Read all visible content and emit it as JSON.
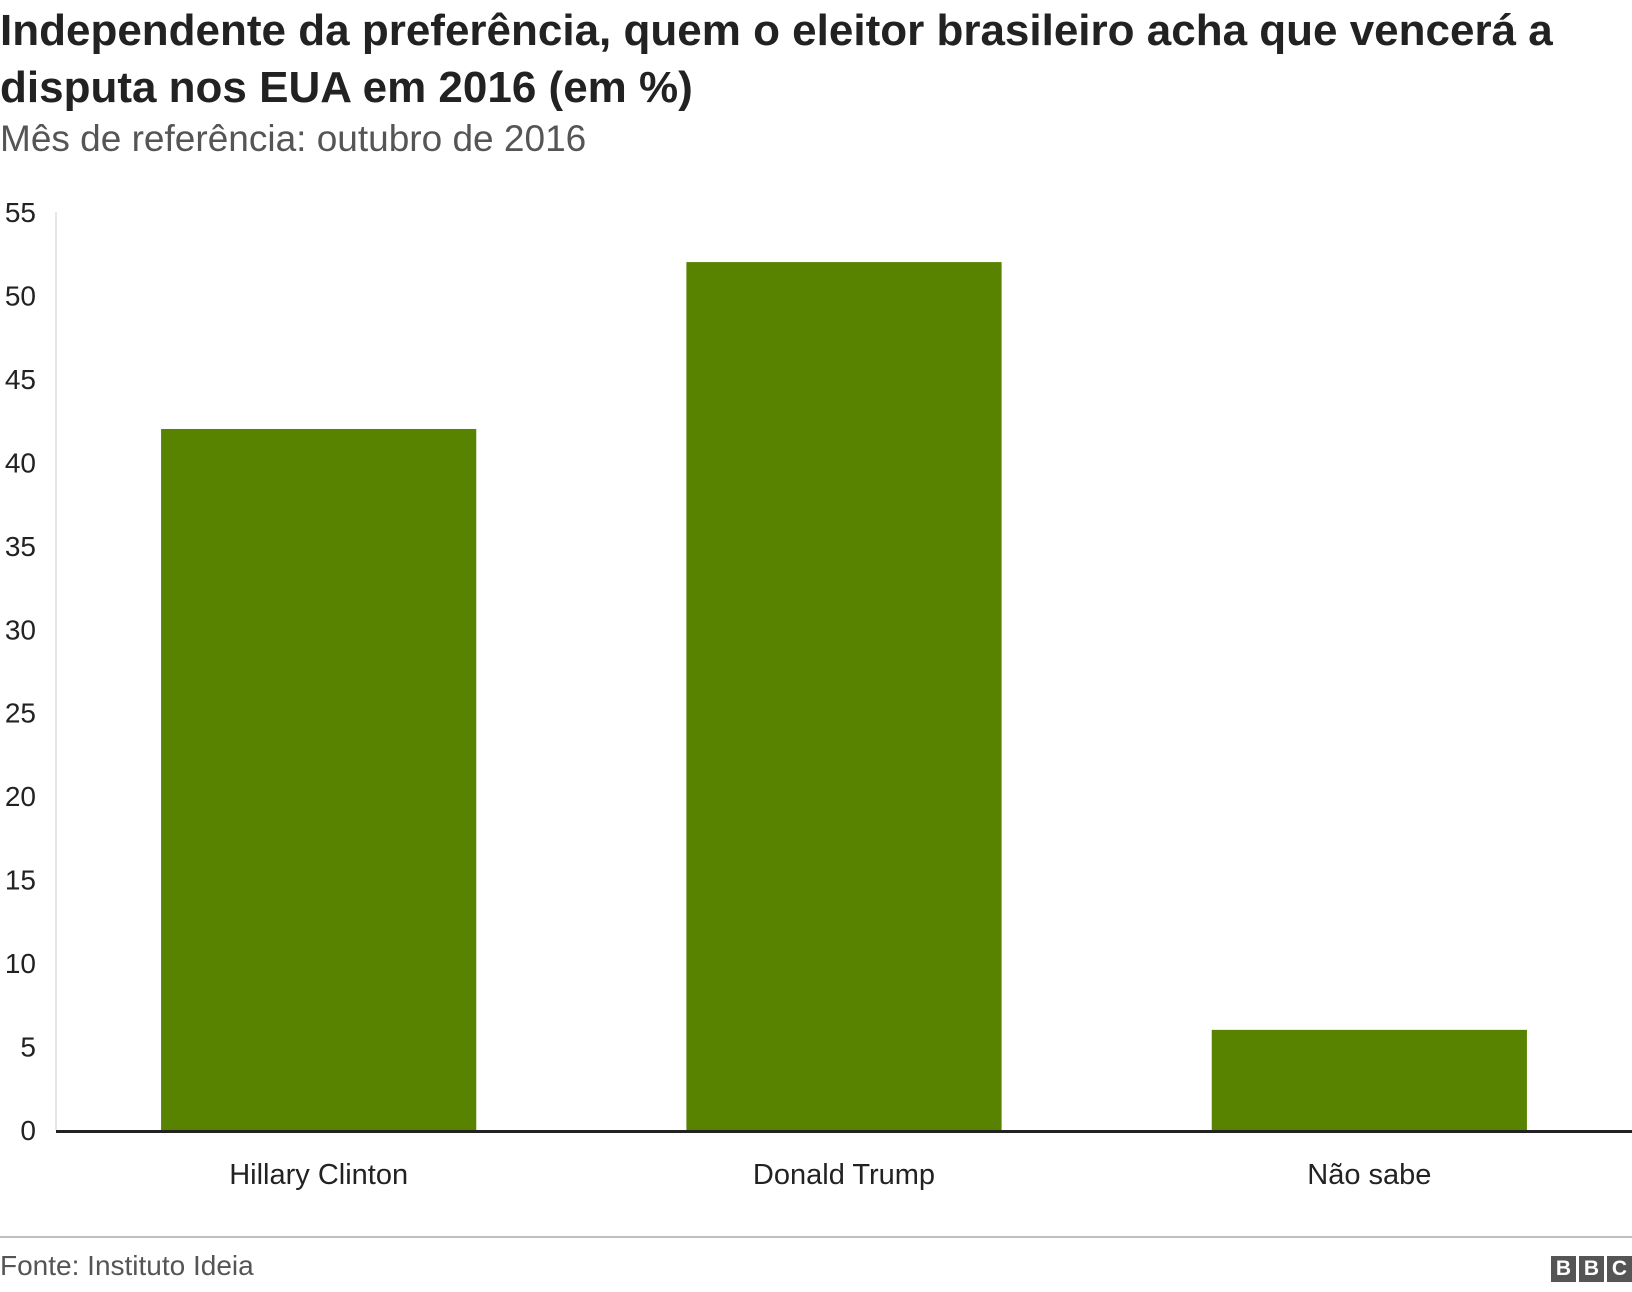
{
  "header": {
    "title": "Independente da preferência, quem o eleitor brasileiro acha que vencerá a disputa nos EUA em 2016 (em %)",
    "subtitle": "Mês de referência: outubro de 2016"
  },
  "chart_data": {
    "type": "bar",
    "title": "Independente da preferência, quem o eleitor brasileiro acha que vencerá a disputa nos EUA em 2016 (em %)",
    "subtitle": "Mês de referência: outubro de 2016",
    "categories": [
      "Hillary Clinton",
      "Donald Trump",
      "Não sabe"
    ],
    "values": [
      42,
      52,
      6
    ],
    "xlabel": "",
    "ylabel": "",
    "ylim": [
      0,
      55
    ],
    "yticks": [
      0,
      5,
      10,
      15,
      20,
      25,
      30,
      35,
      40,
      45,
      50,
      55
    ],
    "grid": false,
    "legend": "none",
    "bar_color": "#588300"
  },
  "footer": {
    "source": "Fonte: Instituto Ideia",
    "logo_letters": [
      "B",
      "B",
      "C"
    ]
  },
  "colors": {
    "bar": "#588300",
    "axis": "#222222",
    "rule": "#bfbfbf"
  }
}
